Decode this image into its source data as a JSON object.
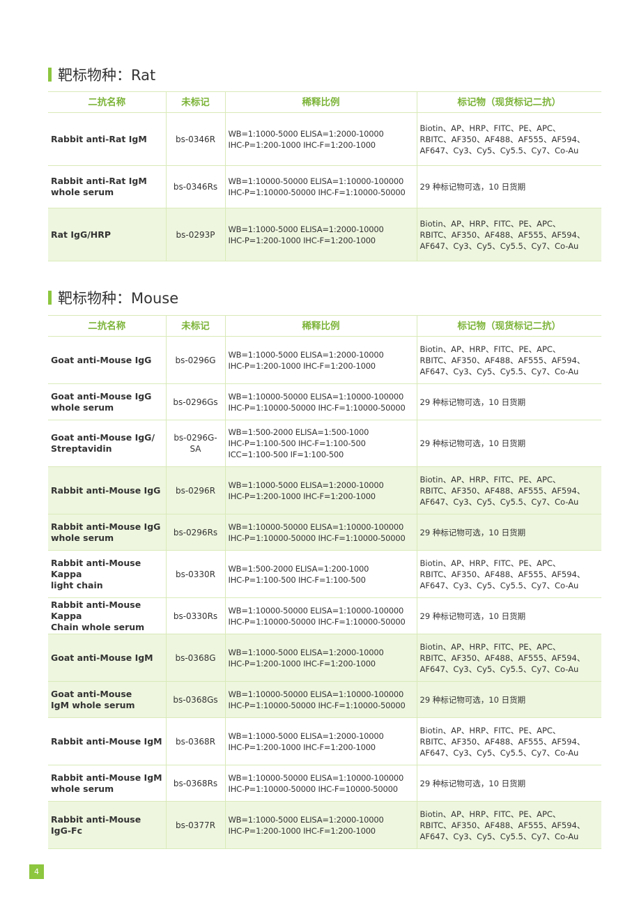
{
  "headers": [
    "二抗名称",
    "未标记",
    "稀释比例",
    "标记物（现货标记二抗）"
  ],
  "sections": [
    {
      "title": "靶标物种：Rat",
      "rows": [
        {
          "name": "Rabbit anti-Rat IgM",
          "code": "bs-0346R",
          "dilution": "WB=1:1000-5000  ELISA=1:2000-10000\nIHC-P=1:200-1000  IHC-F=1:200-1000",
          "markers": "Biotin、AP、HRP、FITC、PE、APC、\nRBITC、AF350、AF488、AF555、AF594、\nAF647、Cy3、Cy5、Cy5.5、Cy7、Co-Au",
          "highlight": false
        },
        {
          "name": "Rabbit anti-Rat IgM\nwhole serum",
          "code": "bs-0346Rs",
          "dilution": "WB=1:10000-50000  ELISA=1:10000-100000\nIHC-P=1:10000-50000  IHC-F=1:10000-50000",
          "markers": "29 种标记物可选，10 日货期",
          "highlight": false
        },
        {
          "name": "Rat IgG/HRP",
          "code": "bs-0293P",
          "dilution": "WB=1:1000-5000  ELISA=1:2000-10000\nIHC-P=1:200-1000  IHC-F=1:200-1000",
          "markers": "Biotin、AP、HRP、FITC、PE、APC、\nRBITC、AF350、AF488、AF555、AF594、\nAF647、Cy3、Cy5、Cy5.5、Cy7、Co-Au",
          "highlight": true
        }
      ]
    },
    {
      "title": "靶标物种：Mouse",
      "rows": [
        {
          "name": "Goat anti-Mouse IgG",
          "code": "bs-0296G",
          "dilution": "WB=1:1000-5000  ELISA=1:2000-10000\nIHC-P=1:200-1000  IHC-F=1:200-1000",
          "markers": "Biotin、AP、HRP、FITC、PE、APC、\nRBITC、AF350、AF488、AF555、AF594、\nAF647、Cy3、Cy5、Cy5.5、Cy7、Co-Au",
          "highlight": false
        },
        {
          "name": "Goat anti-Mouse IgG\nwhole serum",
          "code": "bs-0296Gs",
          "dilution": "WB=1:10000-50000  ELISA=1:10000-100000\nIHC-P=1:10000-50000  IHC-F=1:10000-50000",
          "markers": "29 种标记物可选，10 日货期",
          "highlight": false
        },
        {
          "name": "Goat anti-Mouse IgG/\nStreptavidin",
          "code": "bs-0296G-\nSA",
          "dilution": "WB=1:500-2000  ELISA=1:500-1000\nIHC-P=1:100-500  IHC-F=1:100-500\nICC=1:100-500  IF=1:100-500",
          "markers": "29 种标记物可选，10 日货期",
          "highlight": false
        },
        {
          "name": "Rabbit anti-Mouse IgG",
          "code": "bs-0296R",
          "dilution": "WB=1:1000-5000  ELISA=1:2000-10000\nIHC-P=1:200-1000  IHC-F=1:200-1000",
          "markers": "Biotin、AP、HRP、FITC、PE、APC、\nRBITC、AF350、AF488、AF555、AF594、\nAF647、Cy3、Cy5、Cy5.5、Cy7、Co-Au",
          "highlight": true
        },
        {
          "name": "Rabbit anti-Mouse IgG\nwhole serum",
          "code": "bs-0296Rs",
          "dilution": "WB=1:10000-50000  ELISA=1:10000-100000\nIHC-P=1:10000-50000  IHC-F=1:10000-50000",
          "markers": "29 种标记物可选，10 日货期",
          "highlight": true
        },
        {
          "name": "Rabbit anti-Mouse Kappa\nlight chain",
          "code": "bs-0330R",
          "dilution": "WB=1:500-2000  ELISA=1:200-1000\nIHC-P=1:100-500  IHC-F=1:100-500",
          "markers": "Biotin、AP、HRP、FITC、PE、APC、\nRBITC、AF350、AF488、AF555、AF594、\nAF647、Cy3、Cy5、Cy5.5、Cy7、Co-Au",
          "highlight": false
        },
        {
          "name": "Rabbit anti-Mouse Kappa\nChain whole serum",
          "code": "bs-0330Rs",
          "dilution": "WB=1:10000-50000  ELISA=1:10000-100000\nIHC-P=1:10000-50000  IHC-F=1:10000-50000",
          "markers": "29 种标记物可选，10 日货期",
          "highlight": false
        },
        {
          "name": "Goat anti-Mouse IgM",
          "code": "bs-0368G",
          "dilution": "WB=1:1000-5000  ELISA=1:2000-10000\nIHC-P=1:200-1000  IHC-F=1:200-1000",
          "markers": "Biotin、AP、HRP、FITC、PE、APC、\nRBITC、AF350、AF488、AF555、AF594、\nAF647、Cy3、Cy5、Cy5.5、Cy7、Co-Au",
          "highlight": true
        },
        {
          "name": "Goat anti-Mouse\nIgM whole serum",
          "code": "bs-0368Gs",
          "dilution": "WB=1:10000-50000  ELISA=1:10000-100000\nIHC-P=1:10000-50000  IHC-F=1:10000-50000",
          "markers": "29 种标记物可选，10 日货期",
          "highlight": true
        },
        {
          "name": "Rabbit anti-Mouse IgM",
          "code": "bs-0368R",
          "dilution": "WB=1:1000-5000  ELISA=1:2000-10000\nIHC-P=1:200-1000  IHC-F=1:200-1000",
          "markers": "Biotin、AP、HRP、FITC、PE、APC、\nRBITC、AF350、AF488、AF555、AF594、\nAF647、Cy3、Cy5、Cy5.5、Cy7、Co-Au",
          "highlight": false
        },
        {
          "name": "Rabbit anti-Mouse IgM\nwhole serum",
          "code": "bs-0368Rs",
          "dilution": "WB=1:10000-50000  ELISA=1:10000-100000\nIHC-P=1:10000-50000  IHC-F=10000-50000",
          "markers": "29 种标记物可选，10 日货期",
          "highlight": false
        },
        {
          "name": "Rabbit anti-Mouse IgG-Fc",
          "code": "bs-0377R",
          "dilution": "WB=1:1000-5000  ELISA=1:2000-10000\nIHC-P=1:200-1000  IHC-F=1:200-1000",
          "markers": "Biotin、AP、HRP、FITC、PE、APC、\nRBITC、AF350、AF488、AF555、AF594、\nAF647、Cy3、Cy5、Cy5.5、Cy7、Co-Au",
          "highlight": true
        }
      ]
    }
  ],
  "page_number": "4",
  "colors": {
    "accent": "#8dc63f",
    "header_text": "#7db43a",
    "border": "#d9eab8",
    "highlight_row": "#eef6df"
  }
}
